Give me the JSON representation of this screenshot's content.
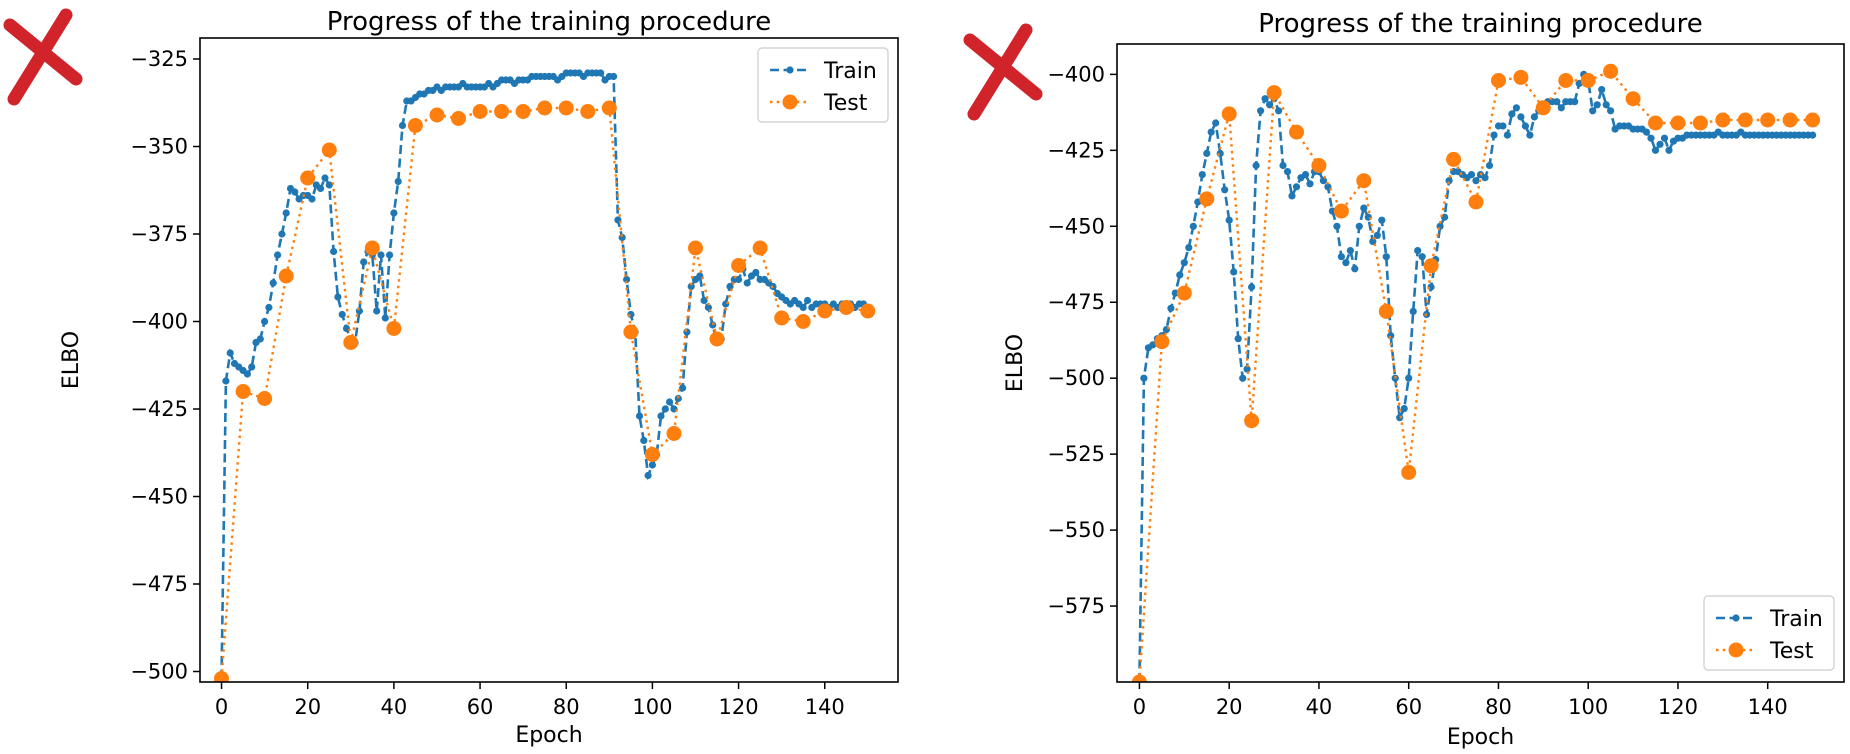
{
  "chart_data": [
    {
      "type": "line",
      "title": "Progress of the training procedure",
      "xlabel": "Epoch",
      "ylabel": "ELBO",
      "xlim": [
        -5,
        157
      ],
      "ylim": [
        -503,
        -319
      ],
      "xticks": [
        0,
        20,
        40,
        60,
        80,
        100,
        120,
        140
      ],
      "yticks": [
        -325,
        -350,
        -375,
        -400,
        -425,
        -450,
        -475,
        -500
      ],
      "legend_position": "top-right",
      "overlay_mark": "red-x",
      "series": [
        {
          "name": "Train",
          "color": "#1f77b4",
          "style": "dashed-dot-markers",
          "x": [
            0,
            1,
            2,
            3,
            4,
            5,
            6,
            7,
            8,
            9,
            10,
            11,
            12,
            13,
            14,
            15,
            16,
            17,
            18,
            19,
            20,
            21,
            22,
            23,
            24,
            25,
            26,
            27,
            28,
            29,
            30,
            31,
            32,
            33,
            34,
            35,
            36,
            37,
            38,
            39,
            40,
            41,
            42,
            43,
            44,
            45,
            46,
            47,
            48,
            49,
            50,
            51,
            52,
            53,
            54,
            55,
            56,
            57,
            58,
            59,
            60,
            61,
            62,
            63,
            64,
            65,
            66,
            67,
            68,
            69,
            70,
            71,
            72,
            73,
            74,
            75,
            76,
            77,
            78,
            79,
            80,
            81,
            82,
            83,
            84,
            85,
            86,
            87,
            88,
            89,
            90,
            91,
            92,
            93,
            94,
            95,
            96,
            97,
            98,
            99,
            100,
            101,
            102,
            103,
            104,
            105,
            106,
            107,
            108,
            109,
            110,
            111,
            112,
            113,
            114,
            115,
            116,
            117,
            118,
            119,
            120,
            121,
            122,
            123,
            124,
            125,
            126,
            127,
            128,
            129,
            130,
            131,
            132,
            133,
            134,
            135,
            136,
            137,
            138,
            139,
            140,
            141,
            142,
            143,
            144,
            145,
            146,
            147,
            148,
            149,
            150
          ],
          "y": [
            -502,
            -417,
            -409,
            -412,
            -413,
            -414,
            -415,
            -413,
            -406,
            -405,
            -400,
            -396,
            -389,
            -381,
            -375,
            -369,
            -362,
            -363,
            -365,
            -364,
            -364,
            -365,
            -361,
            -362,
            -359,
            -361,
            -380,
            -393,
            -398,
            -402,
            -405,
            -406,
            -397,
            -383,
            -380,
            -381,
            -397,
            -381,
            -399,
            -381,
            -369,
            -360,
            -344,
            -337,
            -337,
            -336,
            -335,
            -335,
            -334,
            -334,
            -333,
            -334,
            -333,
            -333,
            -333,
            -333,
            -332,
            -333,
            -333,
            -333,
            -333,
            -333,
            -332,
            -333,
            -332,
            -331,
            -331,
            -331,
            -332,
            -331,
            -331,
            -331,
            -330,
            -330,
            -330,
            -330,
            -330,
            -330,
            -331,
            -330,
            -329,
            -329,
            -329,
            -329,
            -330,
            -329,
            -329,
            -329,
            -329,
            -331,
            -330,
            -330,
            -371,
            -376,
            -388,
            -398,
            -403,
            -427,
            -434,
            -444,
            -441,
            -438,
            -427,
            -425,
            -423,
            -425,
            -422,
            -419,
            -403,
            -390,
            -388,
            -387,
            -394,
            -396,
            -401,
            -406,
            -405,
            -395,
            -390,
            -388,
            -388,
            -385,
            -389,
            -387,
            -386,
            -388,
            -388,
            -389,
            -390,
            -392,
            -393,
            -394,
            -395,
            -394,
            -395,
            -396,
            -394,
            -396,
            -395,
            -395,
            -395,
            -396,
            -395,
            -396,
            -395,
            -395,
            -395,
            -396,
            -395,
            -395,
            -397
          ]
        },
        {
          "name": "Test",
          "color": "#ff7f0e",
          "style": "dotted-large-markers",
          "x": [
            0,
            5,
            10,
            15,
            20,
            25,
            30,
            35,
            40,
            45,
            50,
            55,
            60,
            65,
            70,
            75,
            80,
            85,
            90,
            95,
            100,
            105,
            110,
            115,
            120,
            125,
            130,
            135,
            140,
            145,
            150
          ],
          "y": [
            -502,
            -420,
            -422,
            -387,
            -359,
            -351,
            -406,
            -379,
            -402,
            -344,
            -341,
            -342,
            -340,
            -340,
            -340,
            -339,
            -339,
            -340,
            -339,
            -403,
            -438,
            -432,
            -379,
            -405,
            -384,
            -379,
            -399,
            -400,
            -397,
            -396,
            -397
          ]
        }
      ]
    },
    {
      "type": "line",
      "title": "Progress of the training procedure",
      "xlabel": "Epoch",
      "ylabel": "ELBO",
      "xlim": [
        -5,
        157
      ],
      "ylim": [
        -600,
        -390
      ],
      "xticks": [
        0,
        20,
        40,
        60,
        80,
        100,
        120,
        140
      ],
      "yticks": [
        -400,
        -425,
        -450,
        -475,
        -500,
        -525,
        -550,
        -575
      ],
      "legend_position": "bottom-right",
      "overlay_mark": "red-x",
      "series": [
        {
          "name": "Train",
          "color": "#1f77b4",
          "style": "dashed-dot-markers",
          "x": [
            0,
            1,
            2,
            3,
            4,
            5,
            6,
            7,
            8,
            9,
            10,
            11,
            12,
            13,
            14,
            15,
            16,
            17,
            18,
            19,
            20,
            21,
            22,
            23,
            24,
            25,
            26,
            27,
            28,
            29,
            30,
            31,
            32,
            33,
            34,
            35,
            36,
            37,
            38,
            39,
            40,
            41,
            42,
            43,
            44,
            45,
            46,
            47,
            48,
            49,
            50,
            51,
            52,
            53,
            54,
            55,
            56,
            57,
            58,
            59,
            60,
            61,
            62,
            63,
            64,
            65,
            66,
            67,
            68,
            69,
            70,
            71,
            72,
            73,
            74,
            75,
            76,
            77,
            78,
            79,
            80,
            81,
            82,
            83,
            84,
            85,
            86,
            87,
            88,
            89,
            90,
            91,
            92,
            93,
            94,
            95,
            96,
            97,
            98,
            99,
            100,
            101,
            102,
            103,
            104,
            105,
            106,
            107,
            108,
            109,
            110,
            111,
            112,
            113,
            114,
            115,
            116,
            117,
            118,
            119,
            120,
            121,
            122,
            123,
            124,
            125,
            126,
            127,
            128,
            129,
            130,
            131,
            132,
            133,
            134,
            135,
            136,
            137,
            138,
            139,
            140,
            141,
            142,
            143,
            144,
            145,
            146,
            147,
            148,
            149,
            150
          ],
          "y": [
            -600,
            -500,
            -490,
            -489,
            -487,
            -486,
            -484,
            -477,
            -472,
            -466,
            -462,
            -457,
            -450,
            -442,
            -433,
            -426,
            -419,
            -416,
            -426,
            -438,
            -448,
            -465,
            -487,
            -500,
            -497,
            -470,
            -430,
            -412,
            -408,
            -410,
            -408,
            -412,
            -430,
            -432,
            -440,
            -437,
            -434,
            -433,
            -436,
            -432,
            -432,
            -435,
            -437,
            -445,
            -450,
            -460,
            -462,
            -458,
            -464,
            -450,
            -444,
            -447,
            -455,
            -453,
            -448,
            -460,
            -486,
            -500,
            -513,
            -510,
            -500,
            -478,
            -458,
            -460,
            -479,
            -470,
            -461,
            -450,
            -447,
            -435,
            -432,
            -432,
            -433,
            -434,
            -433,
            -435,
            -433,
            -434,
            -430,
            -420,
            -417,
            -417,
            -420,
            -413,
            -411,
            -414,
            -417,
            -420,
            -414,
            -412,
            -410,
            -409,
            -409,
            -409,
            -411,
            -409,
            -409,
            -409,
            -403,
            -400,
            -402,
            -412,
            -410,
            -405,
            -410,
            -412,
            -418,
            -417,
            -417,
            -417,
            -418,
            -418,
            -418,
            -419,
            -421,
            -425,
            -423,
            -421,
            -425,
            -422,
            -421,
            -421,
            -420,
            -420,
            -420,
            -420,
            -420,
            -420,
            -420,
            -419,
            -420,
            -420,
            -420,
            -420,
            -419,
            -420,
            -420,
            -420,
            -420,
            -420,
            -420,
            -420,
            -420,
            -420,
            -420,
            -420,
            -420,
            -420,
            -420,
            -420,
            -420
          ]
        },
        {
          "name": "Test",
          "color": "#ff7f0e",
          "style": "dotted-large-markers",
          "x": [
            0,
            5,
            10,
            15,
            20,
            25,
            30,
            35,
            40,
            45,
            50,
            55,
            60,
            65,
            70,
            75,
            80,
            85,
            90,
            95,
            100,
            105,
            110,
            115,
            120,
            125,
            130,
            135,
            140,
            145,
            150
          ],
          "y": [
            -600,
            -488,
            -472,
            -441,
            -413,
            -514,
            -406,
            -419,
            -430,
            -445,
            -435,
            -478,
            -531,
            -463,
            -428,
            -442,
            -402,
            -401,
            -411,
            -402,
            -402,
            -399,
            -408,
            -416,
            -416,
            -416,
            -415,
            -415,
            -415,
            -415,
            -415
          ]
        }
      ]
    }
  ]
}
